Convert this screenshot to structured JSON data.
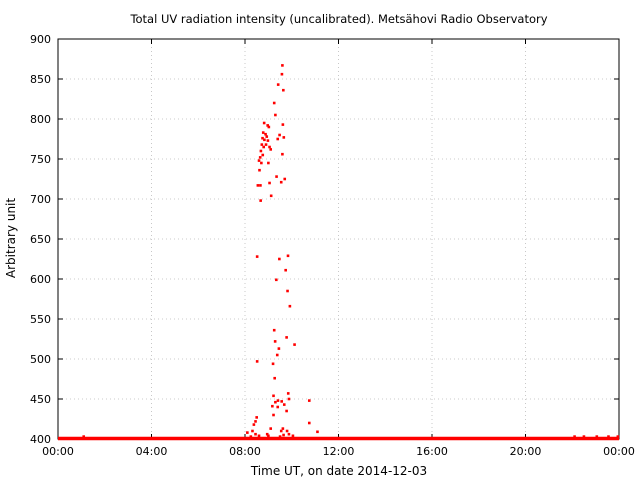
{
  "chart_data": {
    "type": "scatter",
    "title": "Total UV radiation intensity (uncalibrated). Metsähovi Radio Observatory",
    "xlabel": "Time UT, on date 2014-12-03",
    "ylabel": "Arbitrary unit",
    "xlim": [
      0,
      24
    ],
    "ylim": [
      400,
      900
    ],
    "x_ticks": [
      "00:00",
      "04:00",
      "08:00",
      "12:00",
      "16:00",
      "20:00",
      "00:00"
    ],
    "y_ticks": [
      "400",
      "450",
      "500",
      "550",
      "600",
      "650",
      "700",
      "750",
      "800",
      "850",
      "900"
    ],
    "grid": true,
    "marker_color": "#ff0000",
    "baseline": {
      "value": 400,
      "x_start": 0,
      "x_end": 24
    },
    "series": [
      {
        "points": [
          [
            9.6,
            867
          ],
          [
            9.58,
            856
          ],
          [
            9.64,
            836
          ],
          [
            9.42,
            843
          ],
          [
            9.25,
            820
          ],
          [
            9.3,
            805
          ],
          [
            9.62,
            793
          ],
          [
            9.66,
            777
          ],
          [
            8.82,
            795
          ],
          [
            8.97,
            792
          ],
          [
            9.02,
            790
          ],
          [
            8.78,
            783
          ],
          [
            8.88,
            781
          ],
          [
            8.93,
            778
          ],
          [
            8.75,
            776
          ],
          [
            8.83,
            774
          ],
          [
            8.98,
            773
          ],
          [
            9.4,
            775
          ],
          [
            9.48,
            780
          ],
          [
            8.72,
            768
          ],
          [
            8.8,
            765
          ],
          [
            8.9,
            768
          ],
          [
            9.05,
            765
          ],
          [
            8.68,
            760
          ],
          [
            9.1,
            762
          ],
          [
            8.65,
            752
          ],
          [
            8.76,
            755
          ],
          [
            8.6,
            748
          ],
          [
            8.7,
            745
          ],
          [
            9.0,
            745
          ],
          [
            9.6,
            756
          ],
          [
            8.62,
            736
          ],
          [
            9.35,
            728
          ],
          [
            9.7,
            725
          ],
          [
            9.55,
            721
          ],
          [
            9.05,
            720
          ],
          [
            8.55,
            717
          ],
          [
            8.66,
            717
          ],
          [
            9.12,
            704
          ],
          [
            8.67,
            698
          ],
          [
            8.52,
            628
          ],
          [
            9.84,
            629
          ],
          [
            9.47,
            625
          ],
          [
            9.74,
            611
          ],
          [
            9.34,
            599
          ],
          [
            9.82,
            585
          ],
          [
            9.92,
            566
          ],
          [
            9.25,
            536
          ],
          [
            9.78,
            527
          ],
          [
            9.29,
            522
          ],
          [
            10.12,
            518
          ],
          [
            9.45,
            513
          ],
          [
            9.38,
            505
          ],
          [
            8.52,
            497
          ],
          [
            9.2,
            494
          ],
          [
            9.27,
            476
          ],
          [
            9.85,
            457
          ],
          [
            9.22,
            454
          ],
          [
            9.88,
            450
          ],
          [
            10.75,
            448
          ],
          [
            9.41,
            448
          ],
          [
            9.57,
            447
          ],
          [
            9.3,
            446
          ],
          [
            9.68,
            443
          ],
          [
            9.17,
            441
          ],
          [
            9.4,
            440
          ],
          [
            9.78,
            435
          ],
          [
            9.22,
            430
          ],
          [
            8.5,
            427
          ],
          [
            8.45,
            422
          ],
          [
            10.75,
            420
          ],
          [
            8.38,
            418
          ],
          [
            9.62,
            413
          ],
          [
            11.1,
            409
          ],
          [
            8.32,
            410
          ],
          [
            9.1,
            413
          ],
          [
            9.55,
            410
          ],
          [
            9.8,
            410
          ],
          [
            8.1,
            408
          ],
          [
            8.45,
            406
          ],
          [
            8.6,
            404
          ],
          [
            8.95,
            406
          ],
          [
            9.65,
            405
          ],
          [
            9.88,
            406
          ],
          [
            10.05,
            404
          ],
          [
            8.25,
            403
          ],
          [
            9.0,
            404
          ],
          [
            9.5,
            403
          ],
          [
            1.1,
            403
          ],
          [
            22.1,
            403
          ],
          [
            22.5,
            403
          ],
          [
            23.05,
            403
          ],
          [
            23.55,
            403
          ],
          [
            23.95,
            403
          ]
        ]
      }
    ]
  }
}
